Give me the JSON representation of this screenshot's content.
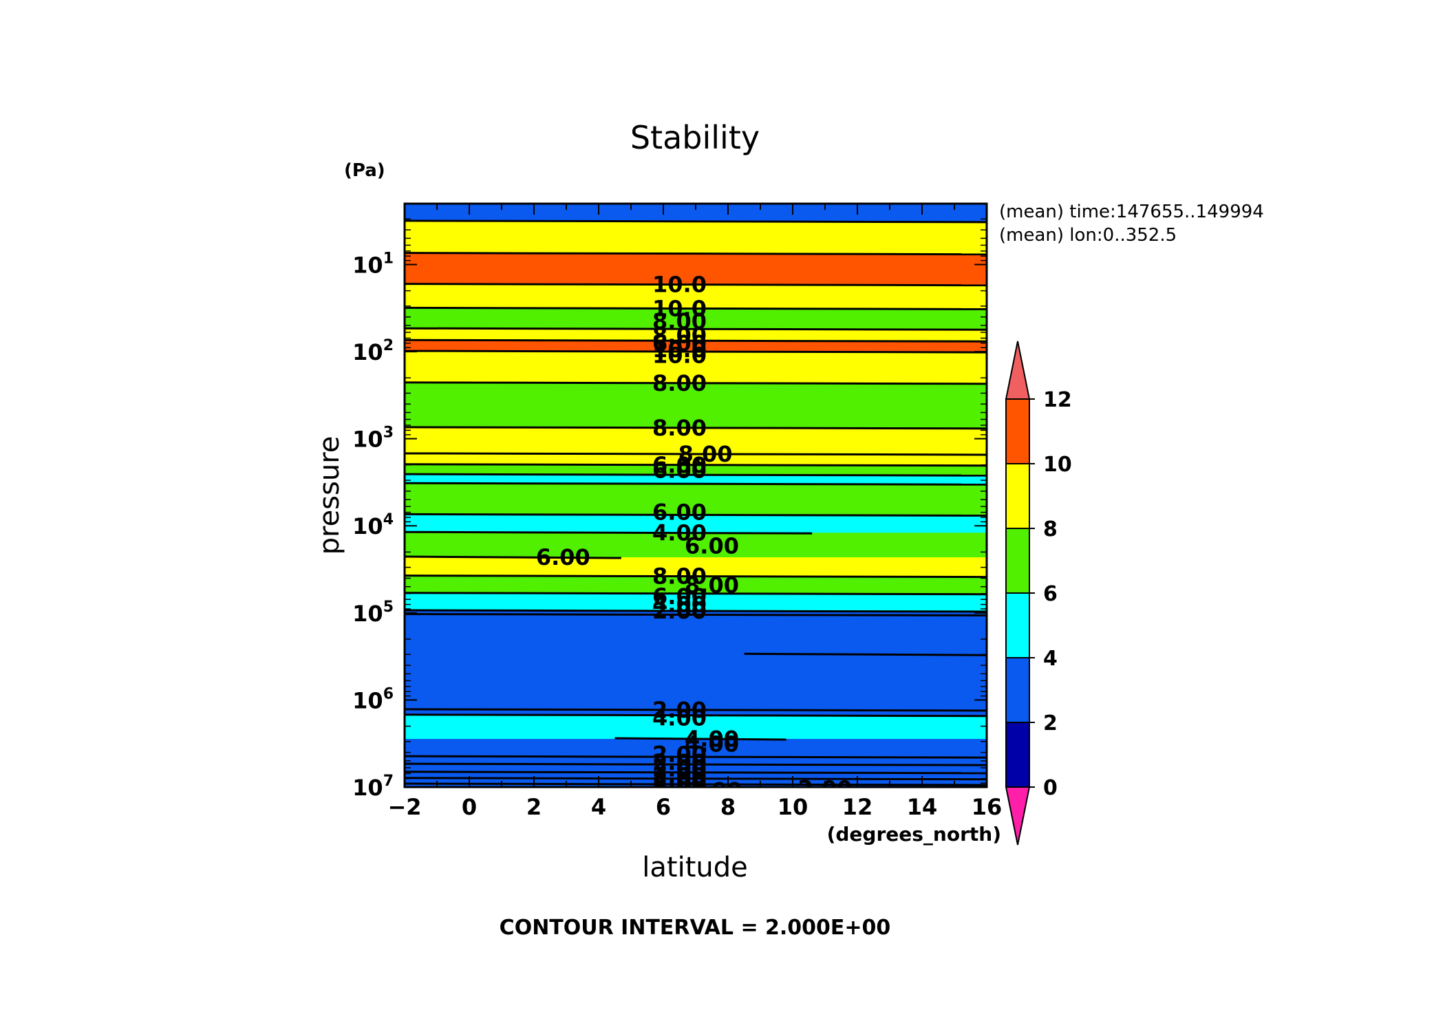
{
  "chart_data": {
    "type": "heatmap",
    "title": "Stability",
    "xlabel": "latitude",
    "xunits": "(degrees_north)",
    "ylabel": "pressure",
    "yunits": "(Pa)",
    "xlim": [
      -2,
      16
    ],
    "x_ticks": [
      "-2",
      "0",
      "2",
      "4",
      "6",
      "8",
      "10",
      "12",
      "14",
      "16"
    ],
    "y_scale": "log",
    "y_inverted": true,
    "ylim": [
      10000000,
      2
    ],
    "y_ticks": [
      {
        "base": "10",
        "exp": "1",
        "value": 10
      },
      {
        "base": "10",
        "exp": "2",
        "value": 100
      },
      {
        "base": "10",
        "exp": "3",
        "value": 1000
      },
      {
        "base": "10",
        "exp": "4",
        "value": 10000
      },
      {
        "base": "10",
        "exp": "5",
        "value": 100000
      },
      {
        "base": "10",
        "exp": "6",
        "value": 1000000
      },
      {
        "base": "10",
        "exp": "7",
        "value": 10000000
      }
    ],
    "annotations": [
      "(mean) time:147655..149994",
      "(mean) lon:0..352.5"
    ],
    "footer": "CONTOUR INTERVAL = 2.000E+00",
    "colorbar": {
      "levels": [
        0,
        2,
        4,
        6,
        8,
        10,
        12
      ],
      "tick_labels": [
        "0",
        "2",
        "4",
        "6",
        "8",
        "10",
        "12"
      ],
      "colors": [
        "#0000a8",
        "#0a5af0",
        "#00ffff",
        "#50f000",
        "#ffff00",
        "#ff5500"
      ],
      "under_color": "#ff1fa8",
      "over_color": "#f06060"
    },
    "bands": [
      {
        "p_top": 2,
        "p_bottom": 3.2,
        "value": 3
      },
      {
        "p_top": 3.2,
        "p_bottom": 7.5,
        "value": 9
      },
      {
        "p_top": 7.5,
        "p_bottom": 17,
        "value": 11
      },
      {
        "p_top": 17,
        "p_bottom": 32,
        "value": 9
      },
      {
        "p_top": 32,
        "p_bottom": 55,
        "value": 7
      },
      {
        "p_top": 55,
        "p_bottom": 75,
        "value": 9
      },
      {
        "p_top": 75,
        "p_bottom": 100,
        "value": 11
      },
      {
        "p_top": 100,
        "p_bottom": 230,
        "value": 9
      },
      {
        "p_top": 230,
        "p_bottom": 750,
        "value": 7
      },
      {
        "p_top": 750,
        "p_bottom": 2000,
        "value": 9
      },
      {
        "p_top": 2000,
        "p_bottom": 2600,
        "value": 7
      },
      {
        "p_top": 2600,
        "p_bottom": 3300,
        "value": 5
      },
      {
        "p_top": 3300,
        "p_bottom": 7500,
        "value": 7
      },
      {
        "p_top": 7500,
        "p_bottom": 12000,
        "value": 5
      },
      {
        "p_top": 12000,
        "p_bottom": 23000,
        "value": 7
      },
      {
        "p_top": 23000,
        "p_bottom": 38000,
        "value": 9
      },
      {
        "p_top": 38000,
        "p_bottom": 60000,
        "value": 7
      },
      {
        "p_top": 60000,
        "p_bottom": 95000,
        "value": 5
      },
      {
        "p_top": 95000,
        "p_bottom": 1500000,
        "value": 3
      },
      {
        "p_top": 1500000,
        "p_bottom": 2800000,
        "value": 5
      },
      {
        "p_top": 2800000,
        "p_bottom": 10000000,
        "value": 3
      }
    ],
    "contour_lines": [
      {
        "p": 3.2
      },
      {
        "p": 7.5
      },
      {
        "p": 17
      },
      {
        "p": 32
      },
      {
        "p": 55
      },
      {
        "p": 75
      },
      {
        "p": 100
      },
      {
        "p": 230
      },
      {
        "p": 750
      },
      {
        "p": 1500
      },
      {
        "p": 2000
      },
      {
        "p": 2600
      },
      {
        "p": 3300
      },
      {
        "p": 7500
      },
      {
        "p": 12000,
        "x_start": -2,
        "x_end": 10.6
      },
      {
        "p": 23000,
        "x_start": -2,
        "x_end": 4.7
      },
      {
        "p": 38000
      },
      {
        "p": 60000
      },
      {
        "p": 95000
      },
      {
        "p": 105000
      },
      {
        "p": 300000,
        "x_start": 8.5,
        "x_end": 16
      },
      {
        "p": 1300000
      },
      {
        "p": 1500000
      },
      {
        "p": 2800000,
        "x_start": 4.5,
        "x_end": 9.8
      },
      {
        "p": 4500000
      },
      {
        "p": 5500000
      },
      {
        "p": 6800000
      },
      {
        "p": 8000000
      },
      {
        "p": 9300000
      },
      {
        "p": 11000000
      }
    ],
    "contour_labels": [
      {
        "text": "10.0",
        "x": 6.5,
        "p": 17
      },
      {
        "text": "10.0",
        "x": 6.5,
        "p": 32
      },
      {
        "text": "8.00",
        "x": 6.5,
        "p": 45
      },
      {
        "text": "8.00",
        "x": 6.5,
        "p": 65
      },
      {
        "text": "6.00",
        "x": 6.5,
        "p": 80
      },
      {
        "text": "10.0",
        "x": 6.5,
        "p": 95
      },
      {
        "text": "10.0",
        "x": 6.5,
        "p": 110
      },
      {
        "text": "8.00",
        "x": 6.5,
        "p": 230
      },
      {
        "text": "8.00",
        "x": 6.5,
        "p": 750
      },
      {
        "text": "8.00",
        "x": 7.3,
        "p": 1500
      },
      {
        "text": "6.00",
        "x": 6.5,
        "p": 2000
      },
      {
        "text": "6.00",
        "x": 6.5,
        "p": 2300
      },
      {
        "text": "6.00",
        "x": 6.5,
        "p": 7000
      },
      {
        "text": "4.00",
        "x": 6.5,
        "p": 12000
      },
      {
        "text": "6.00",
        "x": 7.5,
        "p": 17000
      },
      {
        "text": "6.00",
        "x": 2.9,
        "p": 23000
      },
      {
        "text": "8.00",
        "x": 6.5,
        "p": 38000
      },
      {
        "text": "8.00",
        "x": 7.5,
        "p": 48000
      },
      {
        "text": "6.00",
        "x": 6.5,
        "p": 65000
      },
      {
        "text": "4.00",
        "x": 6.5,
        "p": 80000
      },
      {
        "text": "2.00",
        "x": 6.5,
        "p": 95000
      },
      {
        "text": "2.00",
        "x": 6.5,
        "p": 1300000
      },
      {
        "text": "4.00",
        "x": 6.5,
        "p": 1600000
      },
      {
        "text": "4.00",
        "x": 7.5,
        "p": 2800000
      },
      {
        "text": "4.00",
        "x": 7.5,
        "p": 3200000
      },
      {
        "text": "2.00",
        "x": 6.5,
        "p": 4200000
      },
      {
        "text": "2.00",
        "x": 6.5,
        "p": 5200000
      },
      {
        "text": "2.00",
        "x": 6.5,
        "p": 6200000
      },
      {
        "text": "2.00",
        "x": 6.5,
        "p": 7500000
      },
      {
        "text": "2.00",
        "x": 6.5,
        "p": 8500000
      },
      {
        "text": "2.00",
        "x": 6.5,
        "p": 9500000
      },
      {
        "text": "2.00",
        "x": 7.6,
        "p": 11000000
      },
      {
        "text": "2.00",
        "x": 11.0,
        "p": 10500000
      }
    ]
  }
}
